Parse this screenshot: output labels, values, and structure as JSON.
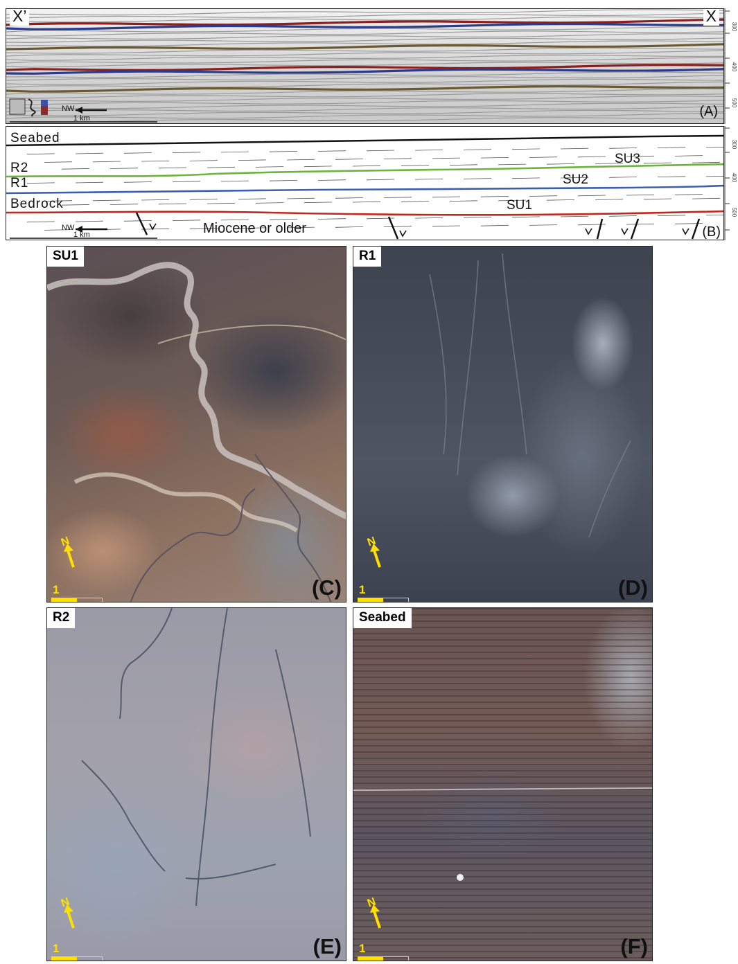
{
  "panel_a": {
    "label_left": "X’",
    "label_right": "X",
    "panel_letter": "(A)",
    "direction": "NW",
    "scale": "1 km",
    "ticks": [
      "300",
      "400",
      "500"
    ]
  },
  "panel_b": {
    "panel_letter": "(B)",
    "direction": "NW",
    "scale": "1 km",
    "ticks": [
      "300",
      "400",
      "500"
    ],
    "horizons": [
      "Seabed",
      "R2",
      "R1",
      "Bedrock"
    ],
    "units": [
      "SU3",
      "SU2",
      "SU1"
    ],
    "older": "Miocene or older"
  },
  "maps": [
    {
      "corner": "SU1",
      "letter": "(C)",
      "north": "N",
      "scale": "1 km"
    },
    {
      "corner": "R1",
      "letter": "(D)",
      "north": "N",
      "scale": "1 km"
    },
    {
      "corner": "R2",
      "letter": "(E)",
      "north": "N",
      "scale": "1 km"
    },
    {
      "corner": "Seabed",
      "letter": "(F)",
      "north": "N",
      "scale": "1 km"
    }
  ],
  "colors": {
    "seabed": "#111111",
    "r2": "#6cb33f",
    "r1": "#3b5fb0",
    "bedrock": "#c0281e",
    "scale_yellow": "#ffe000"
  }
}
